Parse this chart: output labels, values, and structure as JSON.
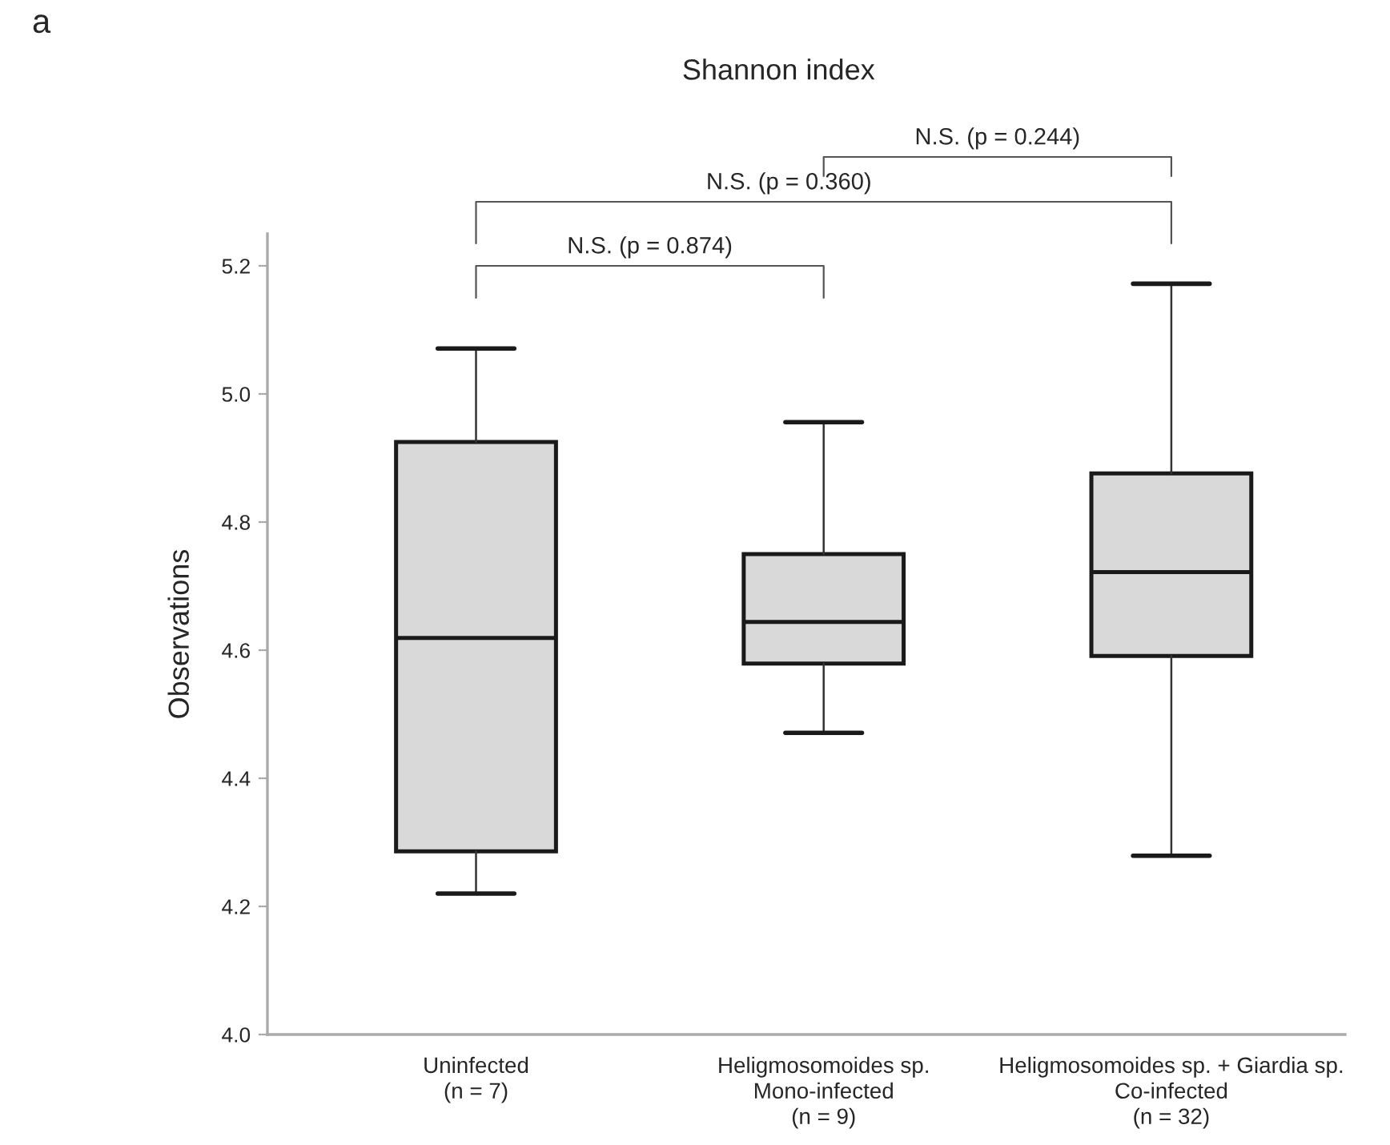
{
  "chart_data": {
    "type": "box",
    "title": "Shannon index",
    "ylabel": "Observations",
    "categories": [
      "Uninfected\n(n = 7)",
      "Heligmosomoides sp.\nMono-infected\n(n = 9)",
      "Heligmosomoides sp. + Giardia sp.\nCo-infected\n(n = 32)"
    ],
    "boxes": [
      {
        "low": 4.22,
        "q1": 4.286,
        "median": 4.619,
        "q3": 4.925,
        "high": 5.071
      },
      {
        "low": 4.471,
        "q1": 4.579,
        "median": 4.644,
        "q3": 4.75,
        "high": 4.956
      },
      {
        "low": 4.279,
        "q1": 4.591,
        "median": 4.722,
        "q3": 4.876,
        "high": 5.172
      }
    ],
    "color": "#d9d9d9",
    "ylim": [
      4.0,
      5.25
    ],
    "yticks": [
      {
        "value": 4.0,
        "label": "4.0"
      },
      {
        "value": 4.2,
        "label": "4.2"
      },
      {
        "value": 4.4,
        "label": "4.4"
      },
      {
        "value": 4.6,
        "label": "4.6"
      },
      {
        "value": 4.8,
        "label": "4.8"
      },
      {
        "value": 5.0,
        "label": "5.0"
      },
      {
        "value": 5.2,
        "label": "5.2"
      }
    ],
    "grid": false,
    "annotations": [
      "a",
      "N.S. (p = 0.874)",
      "N.S. (p = 0.360)",
      "N.S. (p = 0.244)"
    ]
  }
}
